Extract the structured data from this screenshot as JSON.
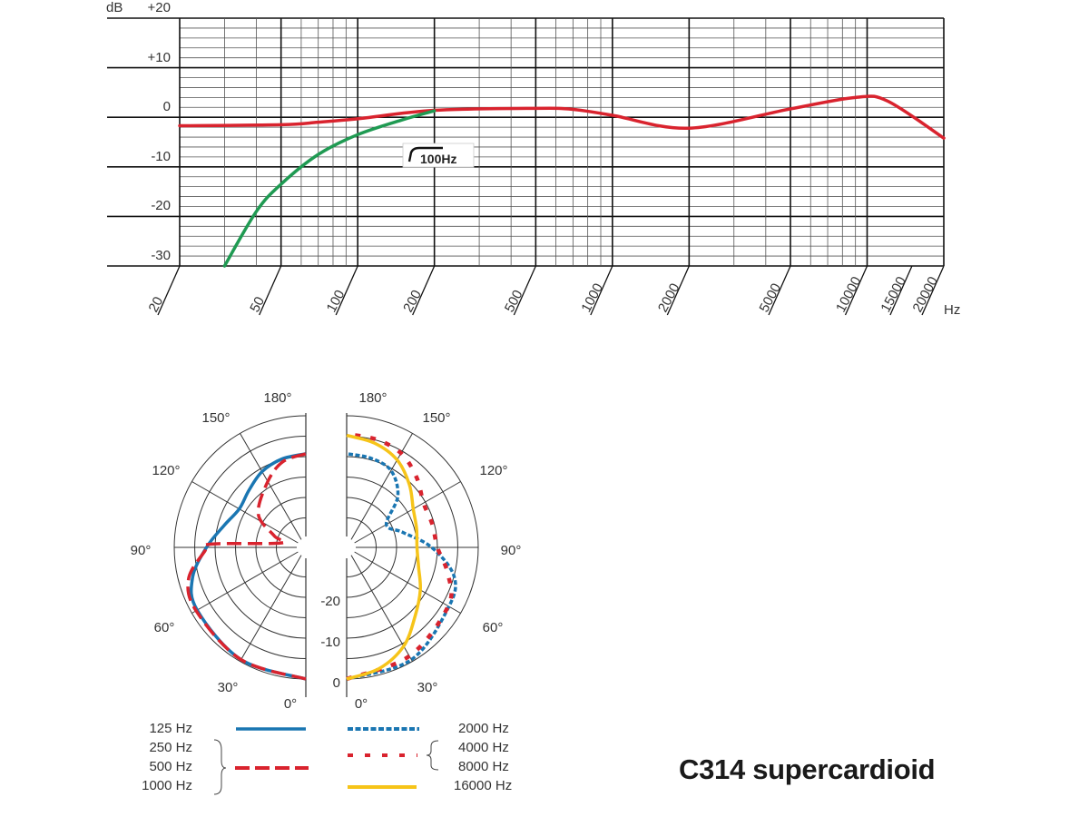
{
  "title": "C314 supercardioid",
  "colors": {
    "red": "#d9232e",
    "green": "#1f9a52",
    "blue": "#1a76b2",
    "yellow": "#f6c419",
    "grid": "#222222"
  },
  "chart_data": [
    {
      "type": "line",
      "xscale": "log",
      "xlabel": "Hz",
      "ylabel": "dB",
      "xlim": [
        20,
        20000
      ],
      "ylim": [
        -30,
        20
      ],
      "grid": true,
      "x_ticks": [
        "20",
        "50",
        "100",
        "200",
        "500",
        "1000",
        "2000",
        "5000",
        "10000",
        "15000",
        "20000"
      ],
      "y_ticks": [
        "+20",
        "+10",
        "0",
        "-10",
        "-20",
        "-30"
      ],
      "annotation": "100Hz",
      "series": [
        {
          "color": "red",
          "x": [
            20,
            50,
            70,
            100,
            200,
            500,
            700,
            1000,
            2000,
            5000,
            9000,
            12000,
            20000
          ],
          "y": [
            -1.7,
            -1.5,
            -1.0,
            -0.3,
            1.4,
            1.8,
            1.6,
            0.4,
            -2.2,
            1.7,
            4.0,
            3.3,
            -4.2
          ]
        },
        {
          "color": "green",
          "x": [
            30,
            40,
            50,
            70,
            100,
            150,
            200
          ],
          "y": [
            -30,
            -19,
            -13.5,
            -7.5,
            -3.5,
            -0.5,
            1.3
          ]
        }
      ]
    },
    {
      "type": "polar",
      "rlim": [
        -30,
        0
      ],
      "r_ticks": [
        "-20",
        "-10",
        "0"
      ],
      "angle_ticks": [
        "0°",
        "30°",
        "60°",
        "90°",
        "120°",
        "150°",
        "180°"
      ],
      "legend_left": [
        "125 Hz",
        "250 Hz",
        "500 Hz",
        "1000 Hz"
      ],
      "legend_right": [
        "2000 Hz",
        "4000 Hz",
        "8000 Hz",
        "16000 Hz"
      ],
      "series": [
        {
          "name": "125 Hz",
          "side": "left",
          "color": "blue",
          "style": "solid",
          "angles": [
            0,
            30,
            60,
            75,
            90,
            105,
            120,
            135,
            150,
            165,
            180
          ],
          "db": [
            0,
            -0.5,
            -1.5,
            -3.5,
            -7.9,
            -11.5,
            -13.4,
            -12.5,
            -10.8,
            -9.8,
            -9.3
          ]
        },
        {
          "name": "250 Hz / 500 Hz / 1000 Hz",
          "side": "left",
          "color": "red",
          "style": "dashed",
          "angles": [
            0,
            30,
            60,
            75,
            88,
            92,
            100,
            110,
            125,
            150,
            165,
            180
          ],
          "db": [
            0,
            -0.5,
            -1.2,
            -2.5,
            -7.5,
            -9,
            -26,
            -24,
            -18,
            -13.6,
            -10.5,
            -9.3
          ]
        },
        {
          "name": "2000 Hz",
          "side": "right",
          "color": "blue",
          "style": "dotted",
          "angles": [
            0,
            30,
            60,
            75,
            90,
            105,
            120,
            135,
            150,
            165,
            180
          ],
          "db": [
            0,
            -0.5,
            -3.3,
            -5,
            -11.4,
            -18,
            -21,
            -14.5,
            -10.5,
            -9.6,
            -9.3
          ]
        },
        {
          "name": "4000 Hz / 8000 Hz",
          "side": "right",
          "color": "red",
          "style": "dotted-wide",
          "angles": [
            0,
            30,
            60,
            75,
            90,
            105,
            120,
            135,
            150,
            165,
            180
          ],
          "db": [
            0,
            -1.5,
            -3.5,
            -6.5,
            -10,
            -10.5,
            -10.5,
            -8,
            -5.6,
            -4.8,
            -4.5
          ]
        },
        {
          "name": "16000 Hz",
          "side": "right",
          "color": "yellow",
          "style": "solid",
          "angles": [
            0,
            15,
            30,
            45,
            60,
            75,
            90,
            105,
            120,
            135,
            150,
            165,
            180
          ],
          "db": [
            0,
            -1.5,
            -4.3,
            -8.5,
            -11.4,
            -14,
            -15,
            -14.5,
            -13.4,
            -10.5,
            -7.5,
            -5.8,
            -4.8
          ]
        }
      ]
    }
  ]
}
